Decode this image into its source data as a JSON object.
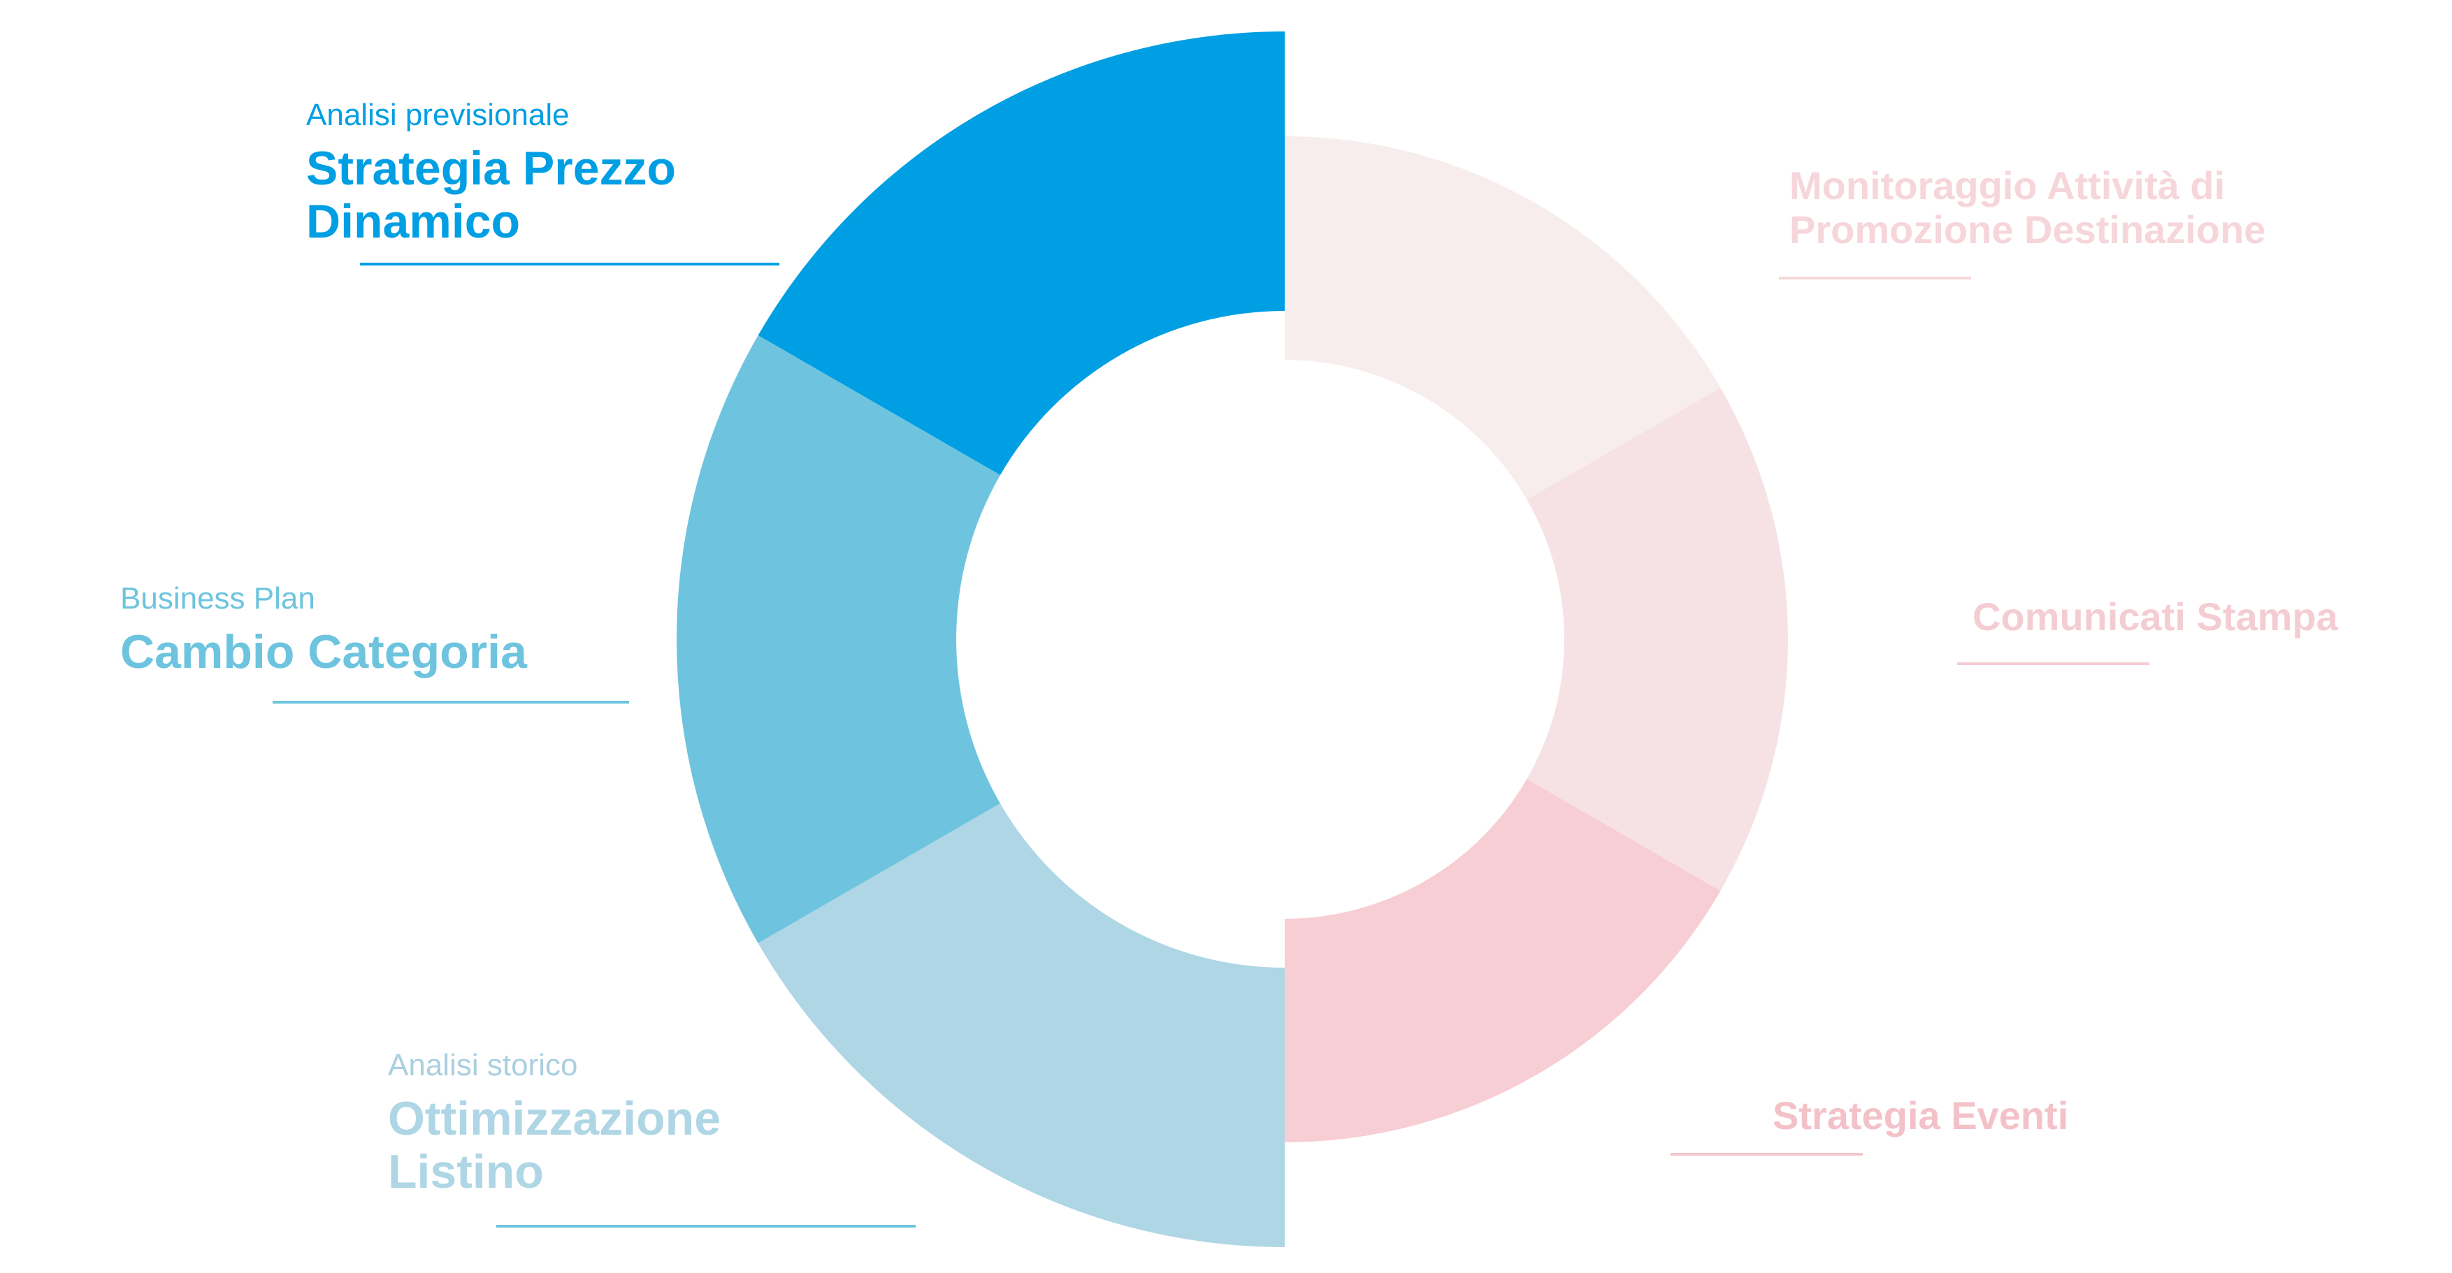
{
  "diagram": {
    "left_segments": [
      {
        "id": "strategia",
        "sub": "Analisi previsionale",
        "title": "Strategia Prezzo\nDinamico",
        "color": "#009FE3"
      },
      {
        "id": "cambio",
        "sub": "Business Plan",
        "title": "Cambio Categoria",
        "color": "#6EC4DE"
      },
      {
        "id": "ottimizzazione",
        "sub": "Analisi storico",
        "title": "Ottimizzazione\nListino",
        "color": "#AED6E5"
      }
    ],
    "right_segments": [
      {
        "id": "monitoraggio",
        "title": "Monitoraggio Attività di\nPromozione Destinazione",
        "color": "#F7EDED",
        "text_color": "#F6D6DA"
      },
      {
        "id": "comunicati",
        "title": "Comunicati Stampa",
        "color": "#F6E2E4",
        "text_color": "#F4CDD2"
      },
      {
        "id": "eventi",
        "title": "Strategia Eventi",
        "color": "#F7CED3",
        "text_color": "#F3C2C8"
      }
    ],
    "line_colors": {
      "strategia": "#009FE3",
      "cambio": "#6EC4DE",
      "ottimizzazione": "#6EC4DE",
      "monitoraggio": "#F6D6DA",
      "comunicati": "#F4CDD2",
      "eventi": "#F4C5CB"
    }
  }
}
